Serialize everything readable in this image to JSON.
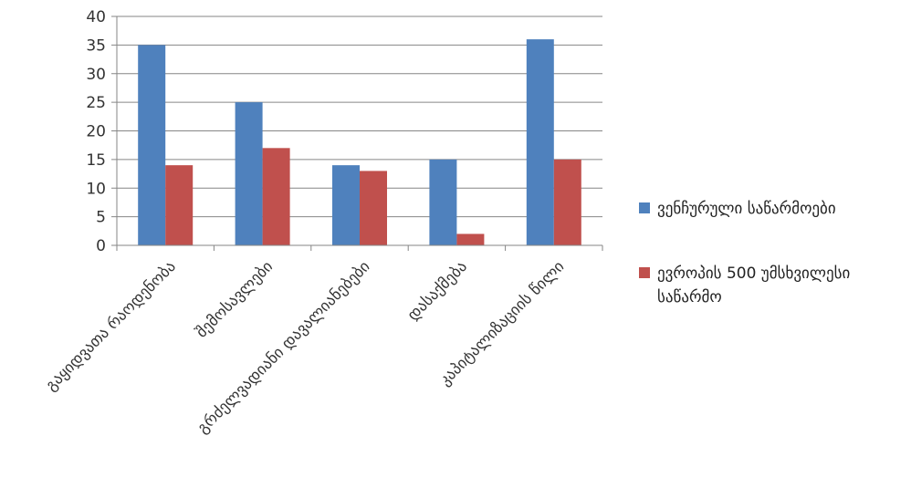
{
  "chart_data": {
    "type": "bar",
    "categories": [
      "გაყიდვათა რაოდენობა",
      "შემოსავლები",
      "გრძელვადიანი დავალიანებები",
      "დასაქმება",
      "კაპიტალიზაციის წილი"
    ],
    "series": [
      {
        "name": "ვენჩურული საწარმოები",
        "color": "#4f81bd",
        "values": [
          35,
          25,
          14,
          15,
          36
        ]
      },
      {
        "name": "ევროპის 500 უმსხვილესი საწარმო",
        "name_lines": [
          "ევროპის 500 უმსხვილესი",
          "საწარმო"
        ],
        "color": "#c0504d",
        "values": [
          14,
          17,
          13,
          2,
          15
        ]
      }
    ],
    "ylim": [
      0,
      40
    ],
    "yticks": [
      0,
      5,
      10,
      15,
      20,
      25,
      30,
      35,
      40
    ],
    "grid": true,
    "legend_position": "right"
  }
}
